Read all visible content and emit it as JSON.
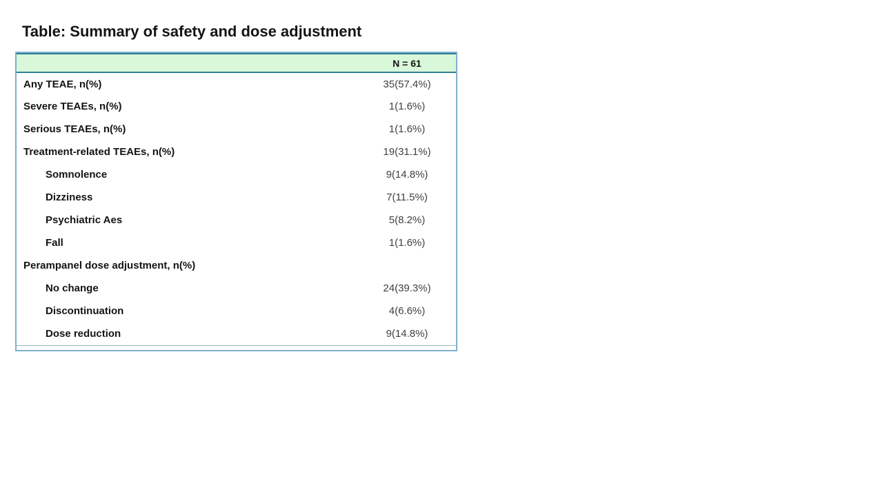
{
  "title": "Table: Summary of safety and dose adjustment",
  "colors": {
    "header_bg": "#d9f7d9",
    "header_rule": "#2e8095",
    "outer_border": "#7fafce",
    "label_text": "#141414",
    "value_text": "#3f3f3f",
    "bottom_rule": "#a3b3bd",
    "page_bg": "#ffffff"
  },
  "table": {
    "header": {
      "value_col_label": "N = 61"
    },
    "rows": [
      {
        "label": "Any TEAE, n(%)",
        "value": "35(57.4%)",
        "indent": false
      },
      {
        "label": "Severe TEAEs, n(%)",
        "value": "1(1.6%)",
        "indent": false
      },
      {
        "label": "Serious TEAEs, n(%)",
        "value": "1(1.6%)",
        "indent": false
      },
      {
        "label": "Treatment-related TEAEs, n(%)",
        "value": "19(31.1%)",
        "indent": false
      },
      {
        "label": "Somnolence",
        "value": "9(14.8%)",
        "indent": true
      },
      {
        "label": "Dizziness",
        "value": "7(11.5%)",
        "indent": true
      },
      {
        "label": "Psychiatric Aes",
        "value": "5(8.2%)",
        "indent": true
      },
      {
        "label": "Fall",
        "value": "1(1.6%)",
        "indent": true
      },
      {
        "label": "Perampanel dose adjustment, n(%)",
        "value": "",
        "indent": false
      },
      {
        "label": "No change",
        "value": "24(39.3%)",
        "indent": true
      },
      {
        "label": "Discontinuation",
        "value": "4(6.6%)",
        "indent": true
      },
      {
        "label": "Dose reduction",
        "value": "9(14.8%)",
        "indent": true
      }
    ]
  }
}
